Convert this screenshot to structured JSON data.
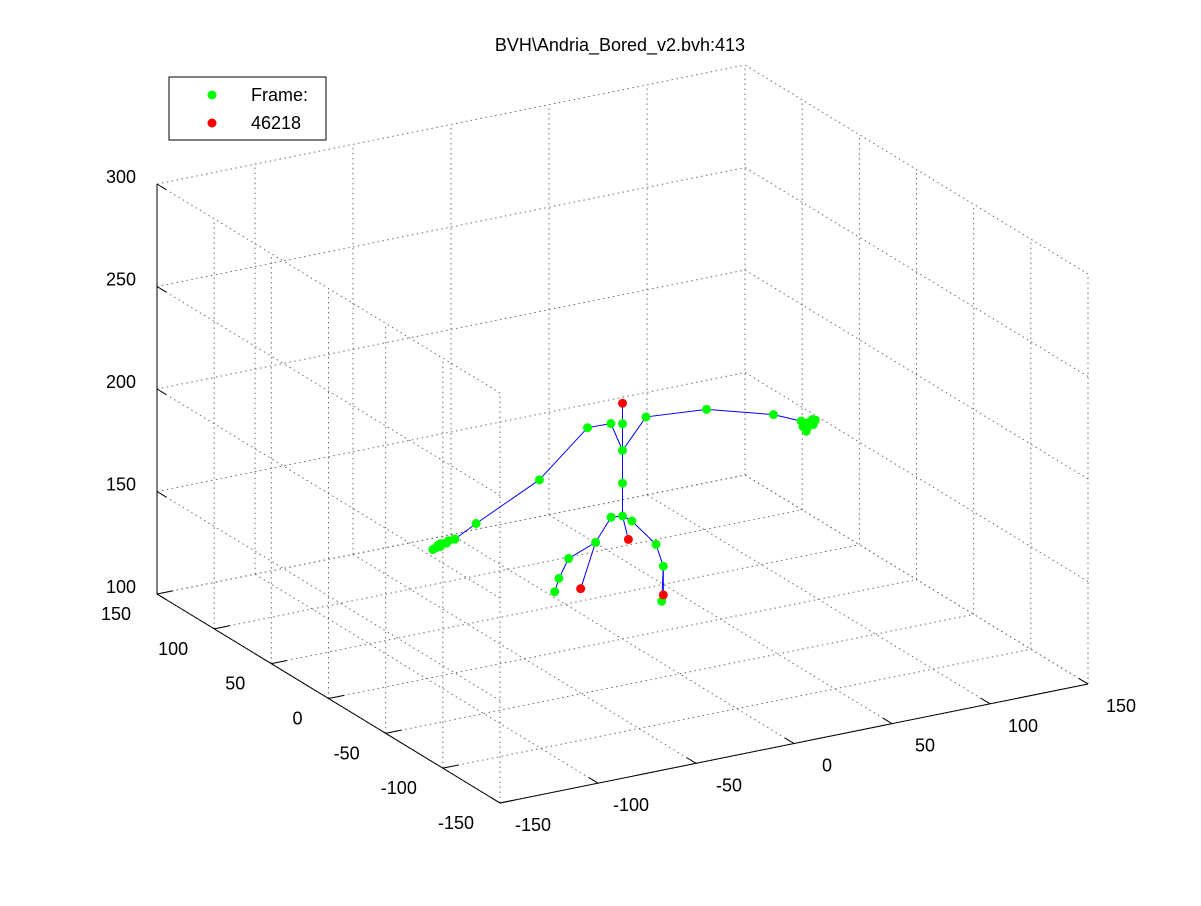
{
  "chart_data": {
    "type": "scatter",
    "title": "BVH\\Andria_Bored_v2.bvh:413",
    "xlim": [
      -150,
      150
    ],
    "ylim": [
      -150,
      150
    ],
    "zlim": [
      100,
      300
    ],
    "x_ticks": [
      "-150",
      "-100",
      "-50",
      "0",
      "50",
      "100",
      "150"
    ],
    "y_ticks": [
      "-150",
      "-100",
      "-50",
      "0",
      "50",
      "100",
      "150"
    ],
    "z_ticks": [
      "100",
      "150",
      "200",
      "250",
      "300"
    ],
    "grid": true,
    "legend_position": "top-left",
    "legend": [
      {
        "label": "Frame:",
        "color": "#00ff00"
      },
      {
        "label": "46218",
        "color": "#ff0000"
      }
    ],
    "colors": {
      "joint": "#00ff00",
      "end_site": "#ff0000",
      "bone": "#0000ff"
    },
    "joints": [
      {
        "name": "hips",
        "x": 0,
        "y": 0,
        "z": 160
      },
      {
        "name": "spine",
        "x": 0,
        "y": 0,
        "z": 176
      },
      {
        "name": "chest",
        "x": 0,
        "y": 0,
        "z": 192
      },
      {
        "name": "neck",
        "x": 0,
        "y": 0,
        "z": 205
      },
      {
        "name": "lclav",
        "x": -3,
        "y": 5,
        "z": 204
      },
      {
        "name": "lshoulder",
        "x": -12,
        "y": 10,
        "z": 202
      },
      {
        "name": "lelbow",
        "x": -22,
        "y": 35,
        "z": 170
      },
      {
        "name": "lwrist",
        "x": -35,
        "y": 68,
        "z": 140
      },
      {
        "name": "lhand",
        "x": -40,
        "y": 78,
        "z": 130
      },
      {
        "name": "lhand_a",
        "x": -42,
        "y": 82,
        "z": 127
      },
      {
        "name": "lhand_b",
        "x": -44,
        "y": 84,
        "z": 125
      },
      {
        "name": "lhand_c",
        "x": -45,
        "y": 86,
        "z": 124
      },
      {
        "name": "lhand_d",
        "x": -43,
        "y": 85,
        "z": 126
      },
      {
        "name": "lhand_e",
        "x": -41,
        "y": 82,
        "z": 128
      },
      {
        "name": "lhand_f",
        "x": -46,
        "y": 87,
        "z": 123
      },
      {
        "name": "lhand_g",
        "x": -44,
        "y": 86,
        "z": 125
      },
      {
        "name": "lhand_h",
        "x": -39,
        "y": 80,
        "z": 129
      },
      {
        "name": "rclav",
        "x": 12,
        "y": 0,
        "z": 206
      },
      {
        "name": "rshoulder",
        "x": 40,
        "y": -5,
        "z": 206
      },
      {
        "name": "relbow",
        "x": 70,
        "y": -12,
        "z": 200
      },
      {
        "name": "rwrist",
        "x": 83,
        "y": -14,
        "z": 195
      },
      {
        "name": "rhand_a",
        "x": 86,
        "y": -15,
        "z": 194
      },
      {
        "name": "rhand_b",
        "x": 88,
        "y": -16,
        "z": 193
      },
      {
        "name": "rhand_c",
        "x": 84,
        "y": -14,
        "z": 192
      },
      {
        "name": "rhand_d",
        "x": 87,
        "y": -17,
        "z": 196
      },
      {
        "name": "rhand_e",
        "x": 85,
        "y": -15,
        "z": 190
      },
      {
        "name": "rhand_f",
        "x": 89,
        "y": -16,
        "z": 195
      },
      {
        "name": "rhand_g",
        "x": 86,
        "y": -14,
        "z": 191
      },
      {
        "name": "lhip",
        "x": 0,
        "y": 10,
        "z": 156
      },
      {
        "name": "lknee",
        "x": -5,
        "y": 15,
        "z": 143
      },
      {
        "name": "lankle",
        "x": -10,
        "y": 30,
        "z": 131
      },
      {
        "name": "lfoot",
        "x": -12,
        "y": 35,
        "z": 120
      },
      {
        "name": "ltoe",
        "x": -13,
        "y": 37,
        "z": 113
      },
      {
        "name": "rhip",
        "x": 3,
        "y": -3,
        "z": 158
      },
      {
        "name": "rknee",
        "x": 13,
        "y": -7,
        "z": 146
      },
      {
        "name": "rankle",
        "x": 15,
        "y": -10,
        "z": 136
      },
      {
        "name": "rfoot",
        "x": 13,
        "y": -12,
        "z": 120
      }
    ],
    "end_sites": [
      {
        "name": "head_end",
        "x": 0,
        "y": 0,
        "z": 215
      },
      {
        "name": "pelvis_end",
        "x": 3,
        "y": 0,
        "z": 148
      },
      {
        "name": "ltoe_end",
        "x": -5,
        "y": 28,
        "z": 116
      },
      {
        "name": "rtoe_end",
        "x": 15,
        "y": -10,
        "z": 122
      }
    ],
    "bones": [
      [
        "hips",
        "spine"
      ],
      [
        "spine",
        "chest"
      ],
      [
        "chest",
        "neck"
      ],
      [
        "neck",
        "head_end"
      ],
      [
        "chest",
        "lclav"
      ],
      [
        "lclav",
        "lshoulder"
      ],
      [
        "lshoulder",
        "lelbow"
      ],
      [
        "lelbow",
        "lwrist"
      ],
      [
        "lwrist",
        "lhand"
      ],
      [
        "lhand",
        "lhand_a"
      ],
      [
        "lhand",
        "lhand_b"
      ],
      [
        "lhand",
        "lhand_c"
      ],
      [
        "lhand",
        "lhand_d"
      ],
      [
        "lhand",
        "lhand_e"
      ],
      [
        "lhand",
        "lhand_f"
      ],
      [
        "lhand",
        "lhand_g"
      ],
      [
        "lhand",
        "lhand_h"
      ],
      [
        "chest",
        "rclav"
      ],
      [
        "rclav",
        "rshoulder"
      ],
      [
        "rshoulder",
        "relbow"
      ],
      [
        "relbow",
        "rwrist"
      ],
      [
        "rwrist",
        "rhand_a"
      ],
      [
        "rwrist",
        "rhand_b"
      ],
      [
        "rwrist",
        "rhand_c"
      ],
      [
        "rwrist",
        "rhand_d"
      ],
      [
        "rwrist",
        "rhand_e"
      ],
      [
        "rwrist",
        "rhand_f"
      ],
      [
        "rwrist",
        "rhand_g"
      ],
      [
        "hips",
        "lhip"
      ],
      [
        "lhip",
        "lknee"
      ],
      [
        "lknee",
        "lankle"
      ],
      [
        "lankle",
        "lfoot"
      ],
      [
        "lfoot",
        "ltoe"
      ],
      [
        "hips",
        "rhip"
      ],
      [
        "rhip",
        "rknee"
      ],
      [
        "rknee",
        "rankle"
      ],
      [
        "rankle",
        "rfoot"
      ],
      [
        "hips",
        "pelvis_end"
      ],
      [
        "lknee",
        "ltoe_end"
      ],
      [
        "rankle",
        "rtoe_end"
      ]
    ]
  }
}
